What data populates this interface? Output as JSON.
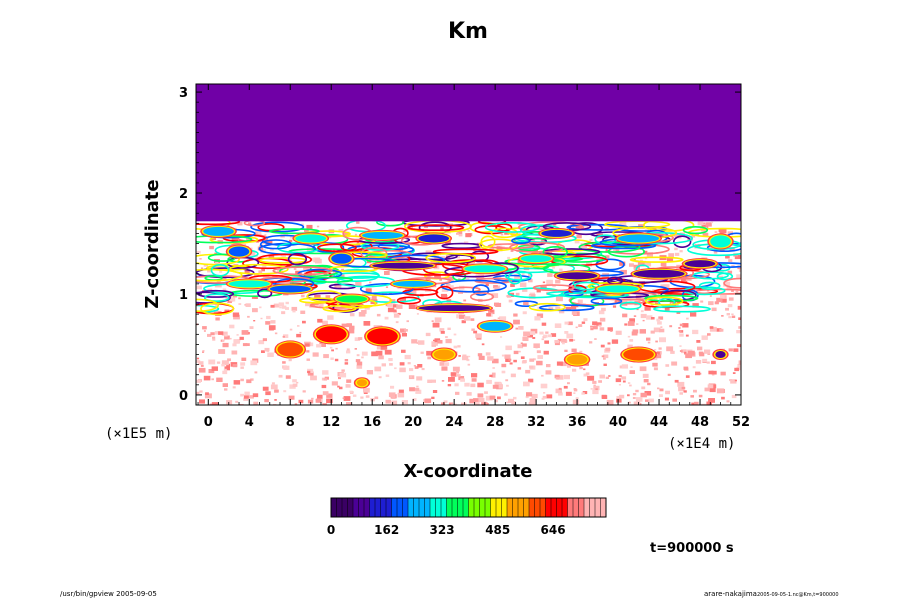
{
  "chart_data": {
    "type": "heatmap",
    "title": "Km",
    "xlabel": "X-coordinate",
    "ylabel": "Z-coordinate",
    "x_unit": "(×1E4 m)",
    "y_unit": "(×1E5 m)",
    "xlim": [
      -1.2,
      52
    ],
    "ylim": [
      -0.1,
      3.08
    ],
    "x_ticks": [
      0,
      4,
      8,
      12,
      16,
      20,
      24,
      28,
      32,
      36,
      40,
      44,
      48,
      52
    ],
    "y_ticks": [
      0,
      1,
      2,
      3
    ],
    "colorbar": {
      "range": [
        0,
        800
      ],
      "tick_values": [
        0,
        162,
        323,
        485,
        646
      ],
      "colors": [
        "#3a0064",
        "#4b0096",
        "#1e1ed2",
        "#0058ff",
        "#00b4ff",
        "#00ffd8",
        "#00ff5a",
        "#78ff00",
        "#fff000",
        "#ffa000",
        "#ff4a00",
        "#ff0000",
        "#ff7a7a",
        "#ffb4b4"
      ]
    },
    "top_layer": {
      "z_bottom": 1.72,
      "z_top": 3.08,
      "value": 0,
      "color": "#7000a6"
    },
    "features": [
      {
        "x": 1,
        "z": 1.62,
        "w": 3,
        "h": 0.07,
        "value": 260
      },
      {
        "x": 3,
        "z": 1.42,
        "w": 2,
        "h": 0.08,
        "value": 180
      },
      {
        "x": 4,
        "z": 1.1,
        "w": 4,
        "h": 0.05,
        "value": 300
      },
      {
        "x": 8,
        "z": 1.05,
        "w": 4,
        "h": 0.05,
        "value": 220
      },
      {
        "x": 10,
        "z": 1.55,
        "w": 3,
        "h": 0.06,
        "value": 320
      },
      {
        "x": 13,
        "z": 1.35,
        "w": 2,
        "h": 0.08,
        "value": 200
      },
      {
        "x": 14,
        "z": 0.95,
        "w": 3,
        "h": 0.05,
        "value": 360
      },
      {
        "x": 17,
        "z": 1.58,
        "w": 4,
        "h": 0.05,
        "value": 280
      },
      {
        "x": 19,
        "z": 1.28,
        "w": 6,
        "h": 0.04,
        "value": 60
      },
      {
        "x": 20,
        "z": 1.1,
        "w": 4,
        "h": 0.04,
        "value": 260
      },
      {
        "x": 22,
        "z": 1.55,
        "w": 3,
        "h": 0.06,
        "value": 120
      },
      {
        "x": 24,
        "z": 0.86,
        "w": 7,
        "h": 0.04,
        "value": 60
      },
      {
        "x": 27,
        "z": 1.25,
        "w": 4,
        "h": 0.05,
        "value": 300
      },
      {
        "x": 28,
        "z": 0.68,
        "w": 3,
        "h": 0.07,
        "value": 260
      },
      {
        "x": 32,
        "z": 1.35,
        "w": 3,
        "h": 0.05,
        "value": 340
      },
      {
        "x": 34,
        "z": 1.6,
        "w": 3,
        "h": 0.05,
        "value": 120
      },
      {
        "x": 36,
        "z": 1.18,
        "w": 4,
        "h": 0.05,
        "value": 100
      },
      {
        "x": 40,
        "z": 1.05,
        "w": 4,
        "h": 0.05,
        "value": 320
      },
      {
        "x": 42,
        "z": 1.55,
        "w": 4,
        "h": 0.06,
        "value": 240
      },
      {
        "x": 44,
        "z": 1.2,
        "w": 5,
        "h": 0.06,
        "value": 80
      },
      {
        "x": 48,
        "z": 1.3,
        "w": 3,
        "h": 0.05,
        "value": 60
      },
      {
        "x": 50,
        "z": 1.52,
        "w": 2,
        "h": 0.1,
        "value": 300
      },
      {
        "x": 8,
        "z": 0.45,
        "w": 2.5,
        "h": 0.12,
        "value": 620
      },
      {
        "x": 12,
        "z": 0.6,
        "w": 3,
        "h": 0.14,
        "value": 640
      },
      {
        "x": 17,
        "z": 0.58,
        "w": 3,
        "h": 0.14,
        "value": 630
      },
      {
        "x": 23,
        "z": 0.4,
        "w": 2,
        "h": 0.08,
        "value": 560
      },
      {
        "x": 36,
        "z": 0.35,
        "w": 2,
        "h": 0.08,
        "value": 540
      },
      {
        "x": 42,
        "z": 0.4,
        "w": 3,
        "h": 0.1,
        "value": 600
      },
      {
        "x": 15,
        "z": 0.12,
        "w": 1,
        "h": 0.05,
        "value": 520
      },
      {
        "x": 50,
        "z": 0.4,
        "w": 1,
        "h": 0.05,
        "value": 100
      }
    ]
  },
  "annotation": {
    "time": "t=900000 s"
  },
  "footer": {
    "left": "/usr/bin/gpview 2005-09-05",
    "right": "arare-nakajima",
    "right_sub": "2005-09-05-1.nc@Km,t=900000"
  }
}
